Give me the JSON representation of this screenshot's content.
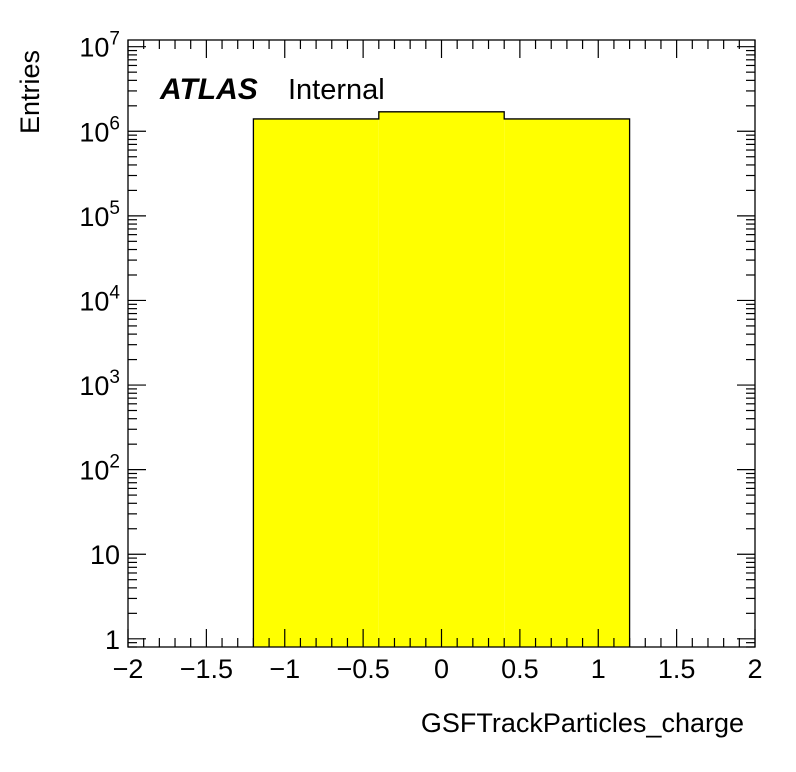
{
  "chart_data": {
    "type": "histogram",
    "title": "",
    "xlabel": "GSFTrackParticles_charge",
    "ylabel": "Entries",
    "xlim": [
      -2,
      2
    ],
    "ylim": [
      0.8,
      12000000
    ],
    "yscale": "log",
    "grid": false,
    "legend": "none",
    "label_main": "ATLAS",
    "label_sub": "Internal",
    "fill_color": "#ffff00",
    "line_color": "#000000",
    "x_tick_labels": [
      "−2",
      "−1.5",
      "−1",
      "−0.5",
      "0",
      "0.5",
      "1",
      "1.5",
      "2"
    ],
    "x_tick_values": [
      -2,
      -1.5,
      -1,
      -0.5,
      0,
      0.5,
      1,
      1.5,
      2
    ],
    "y_ticks": [
      {
        "value": 1,
        "base": "1",
        "exp": ""
      },
      {
        "value": 10,
        "base": "10",
        "exp": ""
      },
      {
        "value": 100,
        "base": "10",
        "exp": "2"
      },
      {
        "value": 1000,
        "base": "10",
        "exp": "3"
      },
      {
        "value": 10000,
        "base": "10",
        "exp": "4"
      },
      {
        "value": 100000,
        "base": "10",
        "exp": "5"
      },
      {
        "value": 1000000,
        "base": "10",
        "exp": "6"
      },
      {
        "value": 10000000,
        "base": "10",
        "exp": "7"
      }
    ],
    "bins": [
      {
        "x_low": -1.2,
        "x_high": -0.4,
        "value": 1400000
      },
      {
        "x_low": -0.4,
        "x_high": 0.4,
        "value": 1700000
      },
      {
        "x_low": 0.4,
        "x_high": 1.2,
        "value": 1400000
      }
    ]
  }
}
